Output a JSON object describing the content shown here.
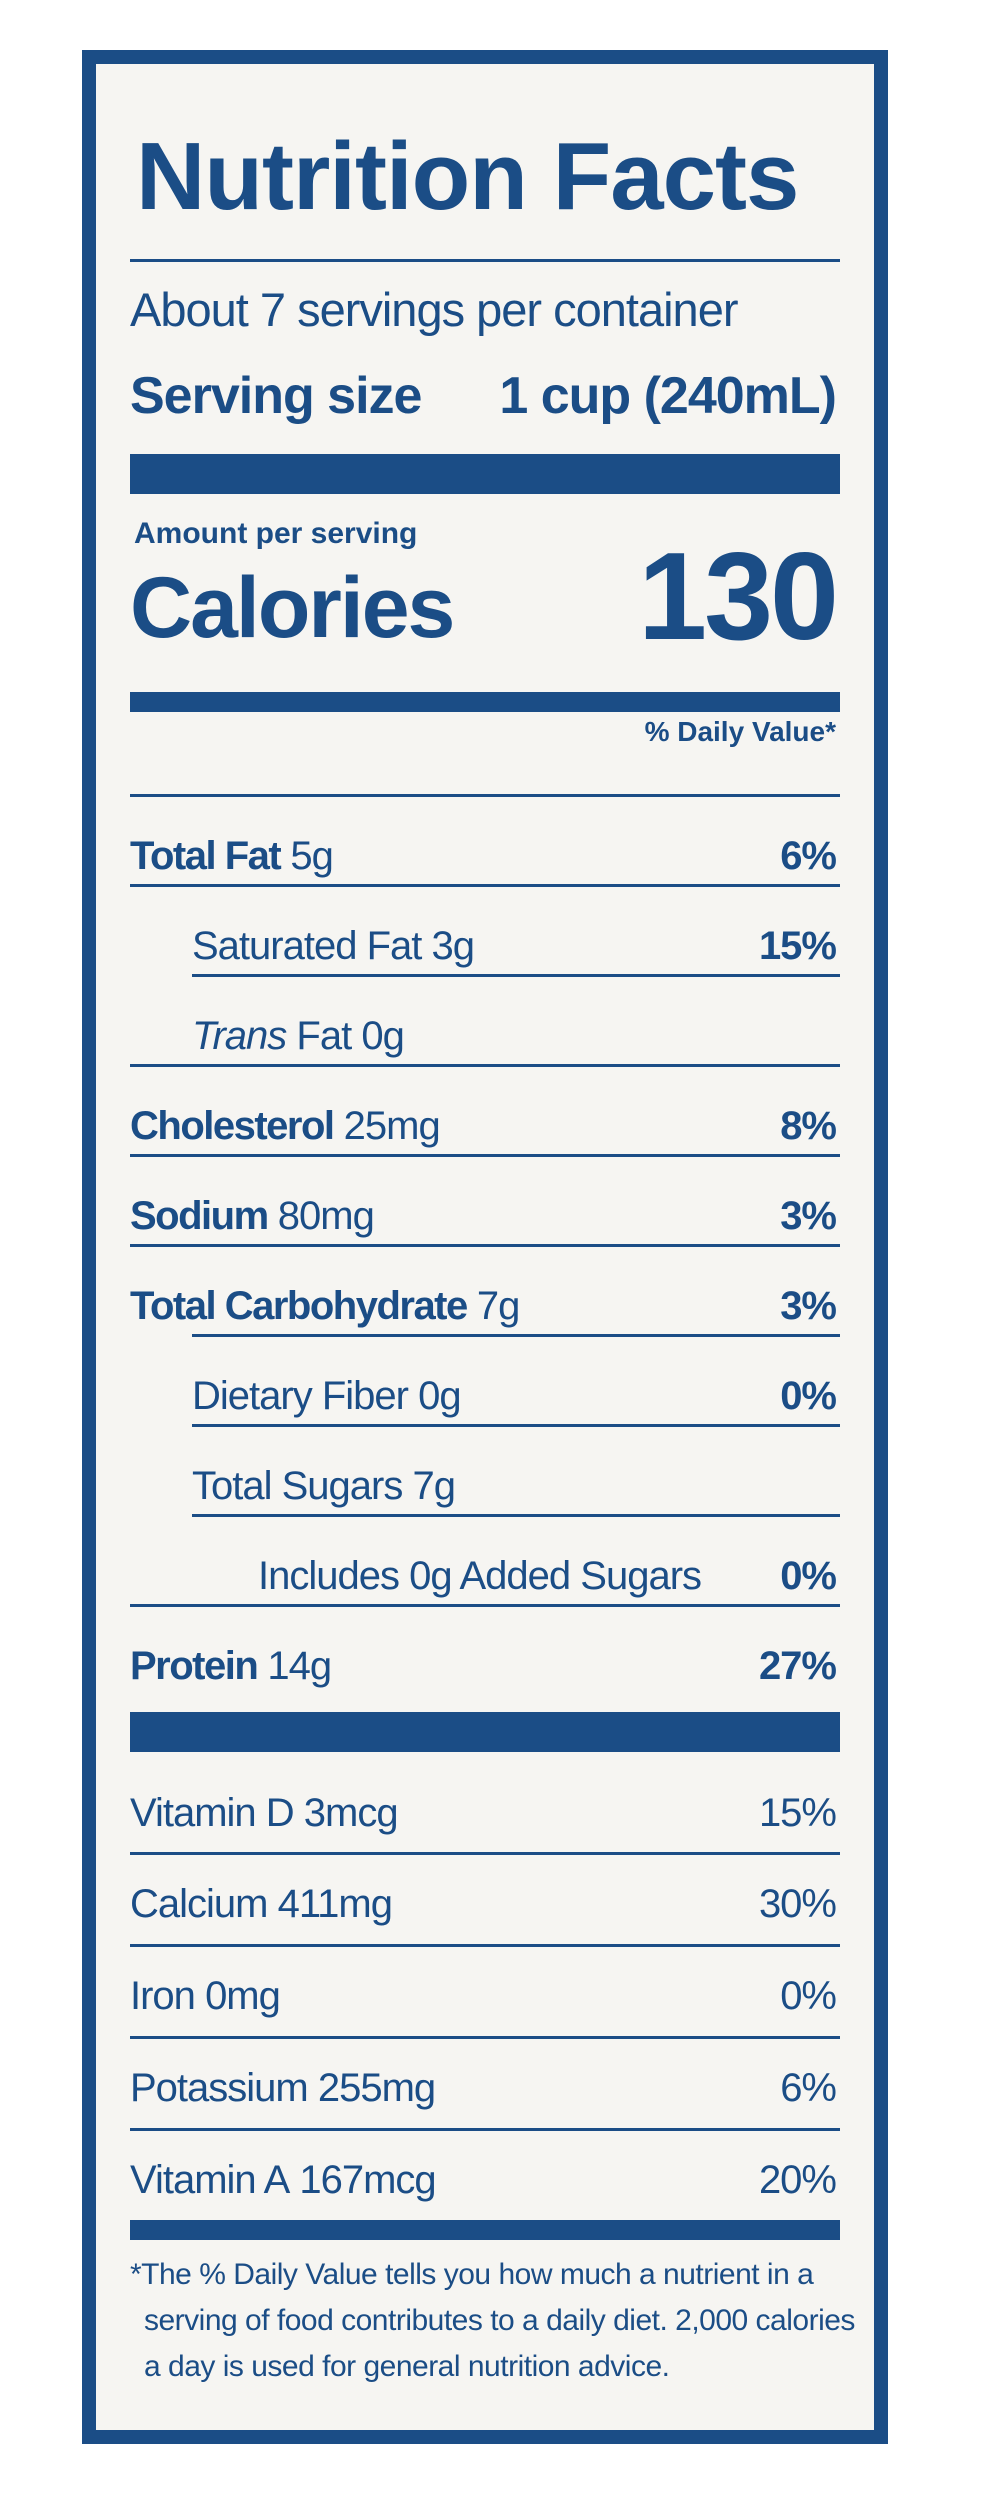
{
  "title": "Nutrition Facts",
  "servings_per_container": "About 7 servings per container",
  "serving_size_label": "Serving size",
  "serving_size_value": "1 cup (240mL)",
  "amount_per_serving": "Amount per serving",
  "calories_label": "Calories",
  "calories_value": "130",
  "daily_value_header": "% Daily Value*",
  "nutrients": [
    {
      "name": "Total Fat",
      "amount": "5g",
      "dv": "6%"
    },
    {
      "name": "Saturated Fat",
      "amount": "3g",
      "dv": "15%"
    },
    {
      "name_italic": "Trans",
      "name": "Fat",
      "amount": "0g",
      "dv": ""
    },
    {
      "name": "Cholesterol",
      "amount": "25mg",
      "dv": "8%"
    },
    {
      "name": "Sodium",
      "amount": "80mg",
      "dv": "3%"
    },
    {
      "name": "Total Carbohydrate",
      "amount": "7g",
      "dv": "3%"
    },
    {
      "name": "Dietary Fiber",
      "amount": "0g",
      "dv": "0%"
    },
    {
      "name": "Total Sugars",
      "amount": "7g",
      "dv": ""
    },
    {
      "name": "Includes 0g Added Sugars",
      "amount": "",
      "dv": "0%"
    },
    {
      "name": "Protein",
      "amount": "14g",
      "dv": "27%"
    }
  ],
  "vitamins": [
    {
      "name": "Vitamin D",
      "amount": "3mcg",
      "dv": "15%"
    },
    {
      "name": "Calcium",
      "amount": "411mg",
      "dv": "30%"
    },
    {
      "name": "Iron",
      "amount": "0mg",
      "dv": "0%"
    },
    {
      "name": "Potassium",
      "amount": "255mg",
      "dv": "6%"
    },
    {
      "name": "Vitamin A",
      "amount": "167mcg",
      "dv": "20%"
    }
  ],
  "footnote": [
    "*The % Daily Value tells you how much a nutrient in a",
    "serving of food contributes to a daily diet. 2,000 calories",
    "a day is used for general nutrition advice."
  ],
  "colors": {
    "ink": "#1b4d86",
    "panel": "#f6f5f2"
  }
}
